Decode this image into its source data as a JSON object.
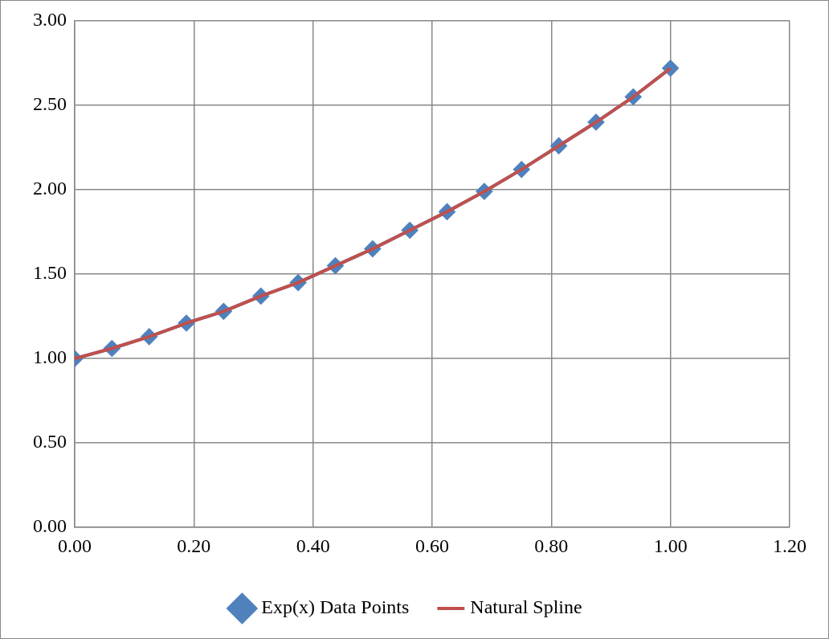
{
  "chart_data": {
    "type": "line",
    "x": [
      0,
      0.0625,
      0.125,
      0.1875,
      0.25,
      0.3125,
      0.375,
      0.4375,
      0.5,
      0.5625,
      0.625,
      0.6875,
      0.75,
      0.8125,
      0.875,
      0.9375,
      1
    ],
    "series": [
      {
        "name": "Exp(x) Data Points",
        "color": "#4f81bd",
        "marker": "diamond",
        "values": [
          1.0,
          1.06,
          1.13,
          1.21,
          1.28,
          1.37,
          1.45,
          1.55,
          1.65,
          1.76,
          1.87,
          1.99,
          2.12,
          2.26,
          2.4,
          2.55,
          2.72
        ]
      },
      {
        "name": "Natural Spline",
        "color": "#c0504d",
        "marker": "none",
        "values": [
          1.0,
          1.06,
          1.13,
          1.21,
          1.28,
          1.37,
          1.45,
          1.55,
          1.65,
          1.76,
          1.87,
          1.99,
          2.12,
          2.26,
          2.4,
          2.55,
          2.72
        ]
      }
    ],
    "xlim": [
      0,
      1.2
    ],
    "xticks": [
      {
        "value": 0,
        "label": "0.00"
      },
      {
        "value": 0.2,
        "label": "0.20"
      },
      {
        "value": 0.4,
        "label": "0.40"
      },
      {
        "value": 0.6,
        "label": "0.60"
      },
      {
        "value": 0.8,
        "label": "0.80"
      },
      {
        "value": 1,
        "label": "1.00"
      },
      {
        "value": 1.2,
        "label": "1.20"
      }
    ],
    "ylim": [
      0,
      3
    ],
    "yticks": [
      {
        "value": 0,
        "label": "0.00"
      },
      {
        "value": 0.5,
        "label": "0.50"
      },
      {
        "value": 1,
        "label": "1.00"
      },
      {
        "value": 1.5,
        "label": "1.50"
      },
      {
        "value": 2,
        "label": "2.00"
      },
      {
        "value": 2.5,
        "label": "2.50"
      },
      {
        "value": 3,
        "label": "3.00"
      }
    ],
    "grid": true,
    "legend": "bottom",
    "line_style": "solid"
  }
}
